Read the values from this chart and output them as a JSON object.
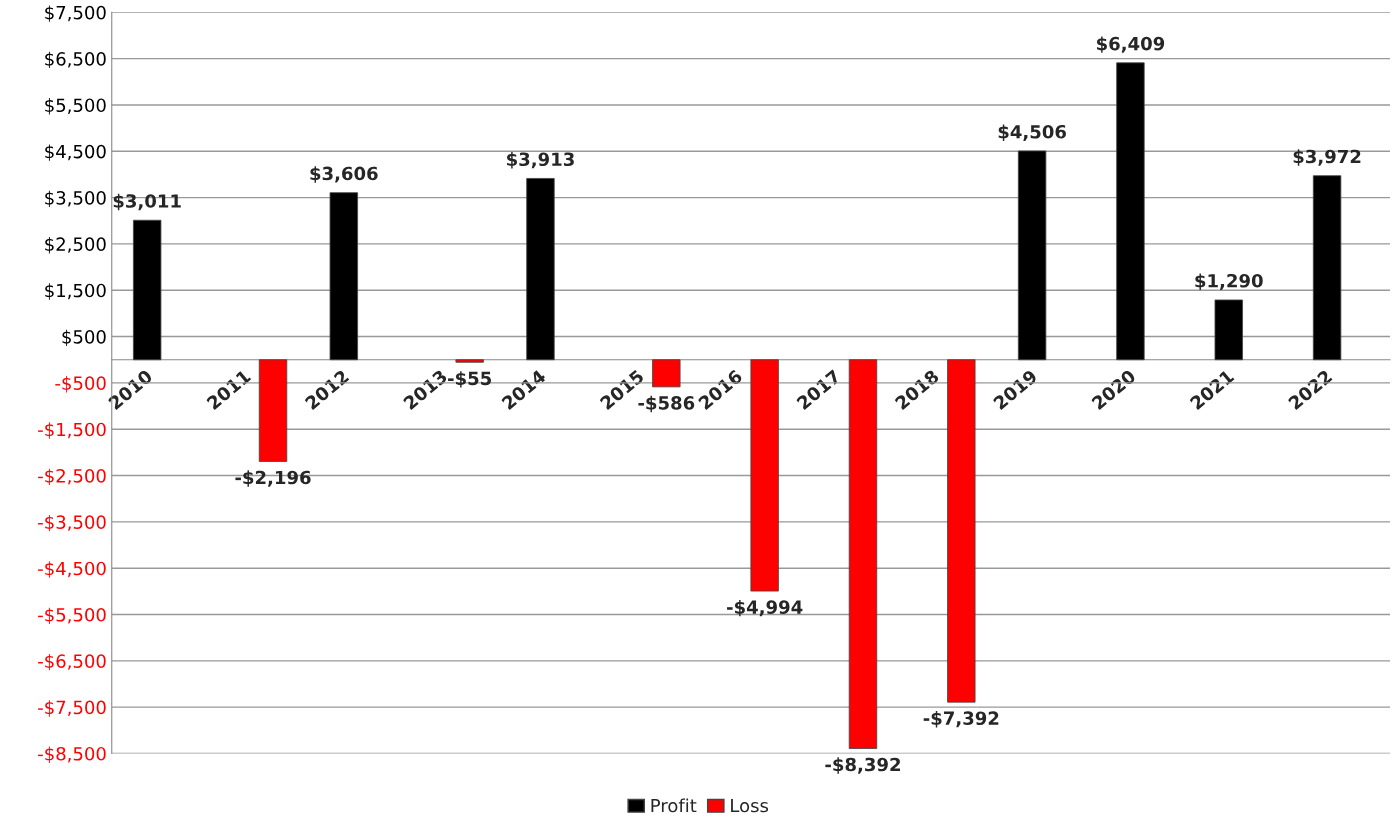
{
  "chart_data": {
    "type": "bar",
    "categories": [
      "2010",
      "2011",
      "2012",
      "2013",
      "2014",
      "2015",
      "2016",
      "2017",
      "2018",
      "2019",
      "2020",
      "2021",
      "2022"
    ],
    "series": [
      {
        "name": "Profit",
        "color": "#000000",
        "values": [
          3011,
          null,
          3606,
          null,
          3913,
          null,
          null,
          null,
          null,
          4506,
          6409,
          1290,
          3972
        ],
        "value_labels": [
          "$3,011",
          null,
          "$3,606",
          null,
          "$3,913",
          null,
          null,
          null,
          null,
          "$4,506",
          "$6,409",
          "$1,290",
          "$3,972"
        ]
      },
      {
        "name": "Loss",
        "color": "#ff0000",
        "values": [
          null,
          -2196,
          null,
          -55,
          null,
          -586,
          -4994,
          -8392,
          -7392,
          null,
          null,
          null,
          null
        ],
        "value_labels": [
          null,
          "-$2,196",
          null,
          "-$55",
          null,
          "-$586",
          "-$4,994",
          "-$8,392",
          "-$7,392",
          null,
          null,
          null,
          null
        ]
      }
    ],
    "ylim": [
      -8500,
      7500
    ],
    "yticks": [
      {
        "value": -8500,
        "label": "-$8,500"
      },
      {
        "value": -7500,
        "label": "-$7,500"
      },
      {
        "value": -6500,
        "label": "-$6,500"
      },
      {
        "value": -5500,
        "label": "-$5,500"
      },
      {
        "value": -4500,
        "label": "-$4,500"
      },
      {
        "value": -3500,
        "label": "-$3,500"
      },
      {
        "value": -2500,
        "label": "-$2,500"
      },
      {
        "value": -1500,
        "label": "-$1,500"
      },
      {
        "value": -500,
        "label": "-$500"
      },
      {
        "value": 500,
        "label": "$500"
      },
      {
        "value": 1500,
        "label": "$1,500"
      },
      {
        "value": 2500,
        "label": "$2,500"
      },
      {
        "value": 3500,
        "label": "$3,500"
      },
      {
        "value": 4500,
        "label": "$4,500"
      },
      {
        "value": 5500,
        "label": "$5,500"
      },
      {
        "value": 6500,
        "label": "$6,500"
      },
      {
        "value": 7500,
        "label": "$7,500"
      }
    ],
    "grid": "y",
    "legend": "bottom"
  }
}
